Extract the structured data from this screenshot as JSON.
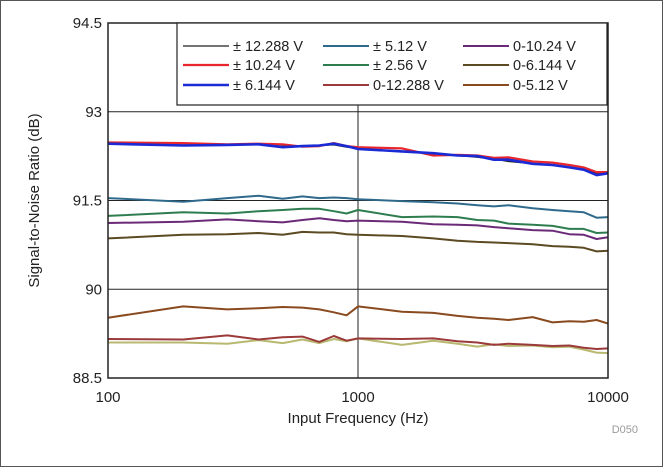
{
  "chart_data": {
    "type": "line",
    "title": "",
    "xlabel": "Input Frequency (Hz)",
    "ylabel": "Signal-to-Noise Ratio (dB)",
    "xscale": "log",
    "xlim": [
      100,
      10000
    ],
    "ylim": [
      88.5,
      94.5
    ],
    "grid": true,
    "legend_position": "top-right",
    "footnote": "D050",
    "x_ticks": [
      "100",
      "1000",
      "10000"
    ],
    "y_ticks": [
      "88.5",
      "90",
      "91.5",
      "93",
      "94.5"
    ],
    "x_tick_values": [
      100,
      1000,
      10000
    ],
    "y_tick_values": [
      88.5,
      90,
      91.5,
      93,
      94.5
    ],
    "x": [
      100,
      200,
      300,
      400,
      500,
      600,
      700,
      800,
      900,
      1000,
      1500,
      2000,
      2500,
      3000,
      3500,
      4000,
      5000,
      6000,
      7000,
      8000,
      9000,
      10000
    ],
    "series": [
      {
        "name": "± 12.288 V",
        "color": "#222222",
        "width": 1.2,
        "values": [
          92.46,
          92.44,
          92.44,
          92.45,
          92.42,
          92.42,
          92.43,
          92.44,
          92.4,
          92.38,
          92.33,
          92.29,
          92.26,
          92.23,
          92.2,
          92.16,
          92.12,
          92.1,
          92.06,
          92.03,
          91.96,
          91.96
        ]
      },
      {
        "name": "± 10.24 V",
        "color": "#e8262b",
        "width": 2.2,
        "values": [
          92.48,
          92.47,
          92.45,
          92.46,
          92.45,
          92.41,
          92.42,
          92.47,
          92.42,
          92.4,
          92.38,
          92.26,
          92.27,
          92.26,
          92.22,
          92.23,
          92.16,
          92.14,
          92.1,
          92.06,
          91.98,
          91.98
        ]
      },
      {
        "name": "± 6.144 V",
        "color": "#1a2bd6",
        "width": 2.6,
        "values": [
          92.46,
          92.43,
          92.44,
          92.45,
          92.4,
          92.42,
          92.43,
          92.46,
          92.42,
          92.37,
          92.33,
          92.3,
          92.26,
          92.25,
          92.19,
          92.19,
          92.12,
          92.1,
          92.06,
          92.02,
          91.93,
          91.96
        ]
      },
      {
        "name": "± 5.12 V",
        "color": "#2f6a8c",
        "width": 2.0,
        "values": [
          91.54,
          91.48,
          91.54,
          91.58,
          91.53,
          91.57,
          91.54,
          91.55,
          91.54,
          91.52,
          91.49,
          91.47,
          91.45,
          91.42,
          91.4,
          91.42,
          91.37,
          91.34,
          91.32,
          91.3,
          91.21,
          91.22
        ]
      },
      {
        "name": "± 2.56 V",
        "color": "#2e7d4f",
        "width": 2.0,
        "values": [
          91.24,
          91.3,
          91.28,
          91.32,
          91.34,
          91.36,
          91.36,
          91.32,
          91.28,
          91.34,
          91.22,
          91.23,
          91.22,
          91.17,
          91.16,
          91.11,
          91.09,
          91.07,
          91.02,
          91.02,
          90.95,
          90.96
        ]
      },
      {
        "name": "0-12.288 V",
        "color": "#9b3a3a",
        "width": 2.0,
        "values": [
          89.16,
          89.15,
          89.22,
          89.15,
          89.19,
          89.2,
          89.11,
          89.21,
          89.13,
          89.17,
          89.16,
          89.17,
          89.12,
          89.1,
          89.06,
          89.08,
          89.06,
          89.04,
          89.05,
          89.01,
          88.99,
          89.0
        ]
      },
      {
        "name": "0-10.24 V",
        "color": "#6b2a78",
        "width": 2.0,
        "values": [
          91.12,
          91.14,
          91.18,
          91.15,
          91.13,
          91.17,
          91.2,
          91.17,
          91.15,
          91.16,
          91.14,
          91.1,
          91.09,
          91.08,
          91.05,
          91.03,
          91.0,
          90.99,
          90.93,
          90.92,
          90.85,
          90.88
        ]
      },
      {
        "name": "0-6.144 V",
        "color": "#5c4a22",
        "width": 2.0,
        "values": [
          90.86,
          90.92,
          90.93,
          90.95,
          90.92,
          90.97,
          90.96,
          90.96,
          90.93,
          90.92,
          90.9,
          90.86,
          90.82,
          90.8,
          90.79,
          90.78,
          90.76,
          90.73,
          90.72,
          90.7,
          90.64,
          90.65
        ]
      },
      {
        "name": "0-5.12 V",
        "color": "#8a4a1f",
        "width": 2.0,
        "values": [
          89.52,
          89.71,
          89.66,
          89.68,
          89.7,
          89.69,
          89.66,
          89.61,
          89.56,
          89.71,
          89.62,
          89.6,
          89.55,
          89.52,
          89.5,
          89.48,
          89.53,
          89.44,
          89.46,
          89.45,
          89.48,
          89.42
        ]
      },
      {
        "name": "",
        "color": "#b8b870",
        "width": 2.0,
        "values": [
          89.1,
          89.1,
          89.08,
          89.14,
          89.09,
          89.15,
          89.09,
          89.16,
          89.12,
          89.17,
          89.06,
          89.13,
          89.08,
          89.03,
          89.07,
          89.04,
          89.05,
          89.02,
          89.03,
          88.98,
          88.93,
          88.92
        ]
      }
    ],
    "legend_order": [
      "± 12.288 V",
      "± 5.12 V",
      "0-10.24 V",
      "± 10.24 V",
      "± 2.56 V",
      "0-6.144 V",
      "± 6.144 V",
      "0-12.288 V",
      "0-5.12 V"
    ]
  }
}
